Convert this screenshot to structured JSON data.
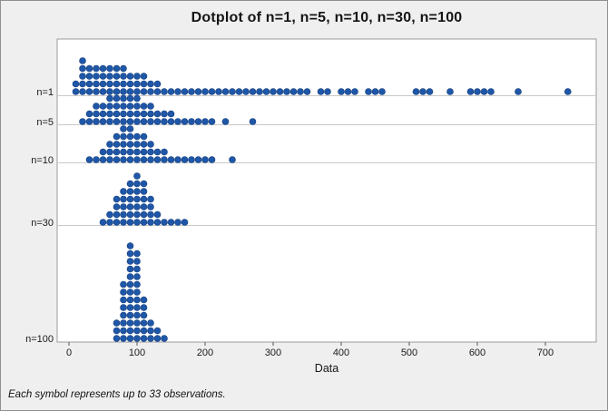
{
  "footnote": "Each symbol represents up to 33 observations.",
  "colors": {
    "dot_fill": "#1f57a8",
    "dot_stroke": "#123c7a",
    "plot_bg": "#ffffff",
    "panel_bg": "#f0efef",
    "separator_line": "#c9c9c9",
    "plot_border": "#9b9b9b",
    "tick_text": "#1a1a1a"
  },
  "chart_data": {
    "type": "dotplot",
    "title": "Dotplot of n=1, n=5, n=10, n=30, n=100",
    "xlabel": "Data",
    "ylabel": "",
    "x_ticks": [
      0,
      100,
      200,
      300,
      400,
      500,
      600,
      700
    ],
    "xlim": [
      -20,
      775
    ],
    "bin_width": 10,
    "symbol_note": "Each symbol represents up to 33 observations.",
    "grid": "row-separator-lines",
    "legend_position": "none",
    "series": [
      {
        "name": "n=1",
        "stacks": [
          [
            10,
            2
          ],
          [
            20,
            5
          ],
          [
            30,
            4
          ],
          [
            40,
            4
          ],
          [
            50,
            4
          ],
          [
            60,
            4
          ],
          [
            70,
            4
          ],
          [
            80,
            4
          ],
          [
            90,
            3
          ],
          [
            100,
            3
          ],
          [
            110,
            3
          ],
          [
            120,
            2
          ],
          [
            130,
            2
          ],
          [
            140,
            1
          ],
          [
            150,
            1
          ],
          [
            160,
            1
          ],
          [
            170,
            1
          ],
          [
            180,
            1
          ],
          [
            190,
            1
          ],
          [
            200,
            1
          ],
          [
            210,
            1
          ],
          [
            220,
            1
          ],
          [
            230,
            1
          ],
          [
            240,
            1
          ],
          [
            250,
            1
          ],
          [
            260,
            1
          ],
          [
            270,
            1
          ],
          [
            280,
            1
          ],
          [
            290,
            1
          ],
          [
            300,
            1
          ],
          [
            310,
            1
          ],
          [
            320,
            1
          ],
          [
            330,
            1
          ],
          [
            340,
            1
          ],
          [
            350,
            1
          ],
          [
            370,
            1
          ],
          [
            380,
            1
          ],
          [
            400,
            1
          ],
          [
            410,
            1
          ],
          [
            420,
            1
          ],
          [
            440,
            1
          ],
          [
            450,
            1
          ],
          [
            460,
            1
          ],
          [
            510,
            1
          ],
          [
            520,
            1
          ],
          [
            530,
            1
          ],
          [
            560,
            1
          ],
          [
            590,
            1
          ],
          [
            600,
            1
          ],
          [
            610,
            1
          ],
          [
            620,
            1
          ],
          [
            660,
            1
          ],
          [
            733,
            1
          ]
        ]
      },
      {
        "name": "n=5",
        "stacks": [
          [
            20,
            1
          ],
          [
            30,
            2
          ],
          [
            40,
            3
          ],
          [
            50,
            3
          ],
          [
            60,
            4
          ],
          [
            70,
            4
          ],
          [
            80,
            4
          ],
          [
            90,
            4
          ],
          [
            100,
            4
          ],
          [
            110,
            3
          ],
          [
            120,
            3
          ],
          [
            130,
            2
          ],
          [
            140,
            2
          ],
          [
            150,
            2
          ],
          [
            160,
            1
          ],
          [
            170,
            1
          ],
          [
            180,
            1
          ],
          [
            190,
            1
          ],
          [
            200,
            1
          ],
          [
            210,
            1
          ],
          [
            230,
            1
          ],
          [
            270,
            1
          ]
        ]
      },
      {
        "name": "n=10",
        "stacks": [
          [
            30,
            1
          ],
          [
            40,
            1
          ],
          [
            50,
            2
          ],
          [
            60,
            3
          ],
          [
            70,
            4
          ],
          [
            80,
            5
          ],
          [
            90,
            5
          ],
          [
            100,
            4
          ],
          [
            110,
            4
          ],
          [
            120,
            3
          ],
          [
            130,
            2
          ],
          [
            140,
            2
          ],
          [
            150,
            1
          ],
          [
            160,
            1
          ],
          [
            170,
            1
          ],
          [
            180,
            1
          ],
          [
            190,
            1
          ],
          [
            200,
            1
          ],
          [
            210,
            1
          ],
          [
            240,
            1
          ]
        ]
      },
      {
        "name": "n=30",
        "stacks": [
          [
            50,
            1
          ],
          [
            60,
            2
          ],
          [
            70,
            4
          ],
          [
            80,
            5
          ],
          [
            90,
            6
          ],
          [
            100,
            7
          ],
          [
            110,
            6
          ],
          [
            120,
            4
          ],
          [
            130,
            2
          ],
          [
            140,
            1
          ],
          [
            150,
            1
          ],
          [
            160,
            1
          ],
          [
            170,
            1
          ]
        ]
      },
      {
        "name": "n=100",
        "stacks": [
          [
            70,
            3
          ],
          [
            80,
            8
          ],
          [
            90,
            13
          ],
          [
            100,
            12
          ],
          [
            110,
            6
          ],
          [
            120,
            3
          ],
          [
            130,
            2
          ],
          [
            140,
            1
          ]
        ]
      }
    ]
  }
}
